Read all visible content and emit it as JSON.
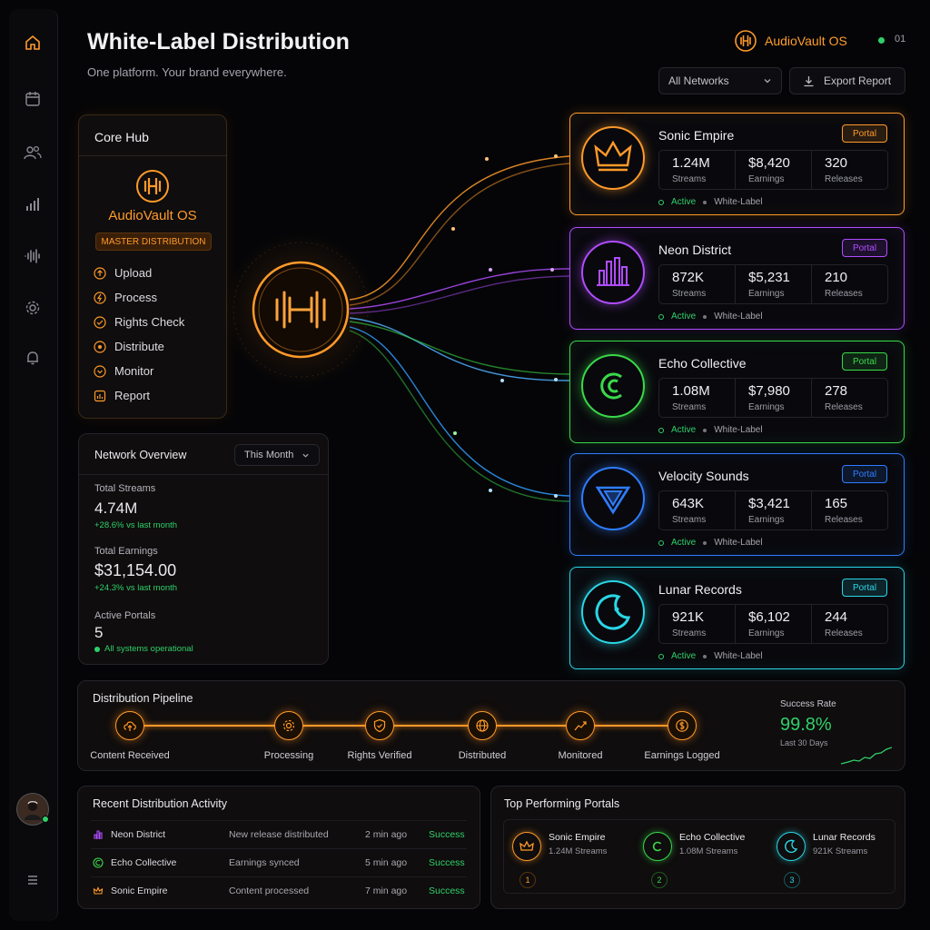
{
  "header": {
    "title": "White-Label Distribution",
    "subtitle": "One platform. Your brand everywhere.",
    "brand": "AudioVault OS",
    "status_count": "01"
  },
  "controls": {
    "network_select": "All Networks",
    "export": "Export Report"
  },
  "hub": {
    "title": "Core Hub",
    "brand": "AudioVault OS",
    "badge": "MASTER DISTRIBUTION",
    "steps": [
      "Upload",
      "Process",
      "Rights Check",
      "Distribute",
      "Monitor",
      "Report"
    ]
  },
  "overview": {
    "title": "Network Overview",
    "period": "This Month",
    "streams_label": "Total Streams",
    "streams": "4.74M",
    "streams_delta": "+28.6% vs last month",
    "earnings_label": "Total Earnings",
    "earnings": "$31,154.00",
    "earnings_delta": "+24.3% vs last month",
    "portals_label": "Active Portals",
    "portals": "5",
    "portals_status": "All systems operational"
  },
  "portal_button": "Portal",
  "portals": [
    {
      "name": "Sonic Empire",
      "streams": "1.24M",
      "earnings": "$8,420",
      "releases": "320",
      "color": "#ff9a2a",
      "icon": "crown-icon"
    },
    {
      "name": "Neon District",
      "streams": "872K",
      "earnings": "$5,231",
      "releases": "210",
      "color": "#b04dff",
      "icon": "city-skyline-icon"
    },
    {
      "name": "Echo Collective",
      "streams": "1.08M",
      "earnings": "$7,980",
      "releases": "278",
      "color": "#3ad94a",
      "icon": "echo-c-icon"
    },
    {
      "name": "Velocity Sounds",
      "streams": "643K",
      "earnings": "$3,421",
      "releases": "165",
      "color": "#2f7dff",
      "icon": "triangle-v-icon"
    },
    {
      "name": "Lunar Records",
      "streams": "921K",
      "earnings": "$6,102",
      "releases": "244",
      "color": "#2ad6e6",
      "icon": "moon-icon"
    }
  ],
  "stat_labels": {
    "streams": "Streams",
    "earnings": "Earnings",
    "releases": "Releases"
  },
  "card_status": {
    "active": "Active",
    "type": "White-Label"
  },
  "pipeline": {
    "title": "Distribution Pipeline",
    "stages": [
      "Content Received",
      "Processing",
      "Rights Verified",
      "Distributed",
      "Monitored",
      "Earnings Logged"
    ],
    "success_label": "Success Rate",
    "success_rate": "99.8%",
    "success_period": "Last 30 Days"
  },
  "activity": {
    "title": "Recent Distribution Activity",
    "rows": [
      {
        "portal": "Neon District",
        "event": "New release distributed",
        "time": "2 min ago",
        "status": "Success"
      },
      {
        "portal": "Echo Collective",
        "event": "Earnings synced",
        "time": "5 min ago",
        "status": "Success"
      },
      {
        "portal": "Sonic Empire",
        "event": "Content processed",
        "time": "7 min ago",
        "status": "Success"
      }
    ]
  },
  "top": {
    "title": "Top Performing Portals",
    "items": [
      {
        "name": "Sonic Empire",
        "streams": "1.24M Streams",
        "rank": "1"
      },
      {
        "name": "Echo Collective",
        "streams": "1.08M Streams",
        "rank": "2"
      },
      {
        "name": "Lunar Records",
        "streams": "921K Streams",
        "rank": "3"
      }
    ]
  }
}
